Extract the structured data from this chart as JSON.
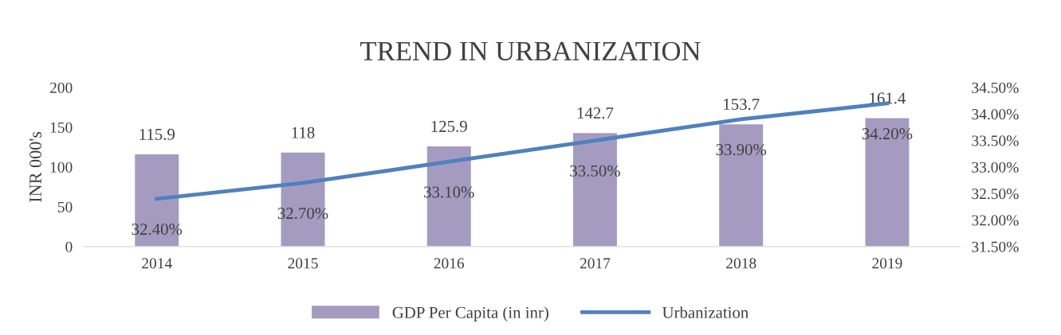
{
  "chart_data": {
    "type": "bar",
    "title": "TREND IN URBANIZATION",
    "ylabel": "INR 000's",
    "categories": [
      "2014",
      "2015",
      "2016",
      "2017",
      "2018",
      "2019"
    ],
    "series": [
      {
        "name": "GDP Per Capita (in inr)",
        "color": "#a59bc0",
        "values": [
          115.9,
          118,
          125.9,
          142.7,
          153.7,
          161.4
        ],
        "value_labels": [
          "115.9",
          "118",
          "125.9",
          "142.7",
          "153.7",
          "161.4"
        ]
      },
      {
        "name": "Urbanization",
        "type": "line",
        "axis": "y2",
        "color": "#4f81bd",
        "values": [
          32.4,
          32.7,
          33.1,
          33.5,
          33.9,
          34.2
        ],
        "value_labels": [
          "32.40%",
          "32.70%",
          "33.10%",
          "33.50%",
          "33.90%",
          "34.20%"
        ]
      }
    ],
    "ylim": [
      0,
      200
    ],
    "yticks": [
      0,
      50,
      100,
      150,
      200
    ],
    "y2lim": [
      31.5,
      34.5
    ],
    "y2ticks": [
      {
        "value": 31.5,
        "label": "31.50%"
      },
      {
        "value": 32.0,
        "label": "32.00%"
      },
      {
        "value": 32.5,
        "label": "32.50%"
      },
      {
        "value": 33.0,
        "label": "33.00%"
      },
      {
        "value": 33.5,
        "label": "33.50%"
      },
      {
        "value": 34.0,
        "label": "34.00%"
      },
      {
        "value": 34.5,
        "label": "34.50%"
      }
    ],
    "grid": false,
    "legend": "bottom",
    "marker": "none",
    "line_style": "solid"
  }
}
